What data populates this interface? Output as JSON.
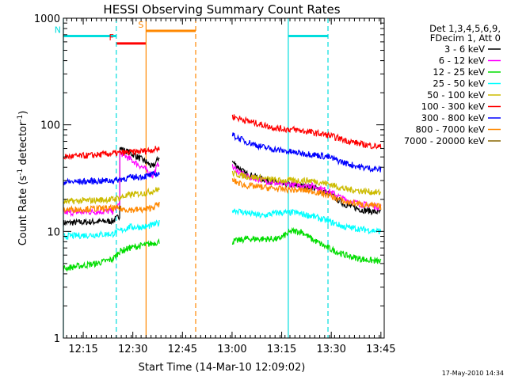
{
  "chart_data": {
    "type": "line",
    "title": "HESSI Observing Summary Count Rates",
    "xlabel": "Start Time (14-Mar-10 12:09:02)",
    "ylabel_main": "Count Rate (s",
    "ylabel_sup": "-1",
    "ylabel_mid": " detector",
    "ylabel_sup2": "-1",
    "ylabel_end": ")",
    "y_scale": "log",
    "ylim": [
      1,
      1000
    ],
    "xlim_minutes": [
      0,
      97
    ],
    "x_ticks": [
      {
        "m": 6,
        "label": "12:15"
      },
      {
        "m": 21,
        "label": "12:30"
      },
      {
        "m": 36,
        "label": "12:45"
      },
      {
        "m": 51,
        "label": "13:00"
      },
      {
        "m": 66,
        "label": "13:15"
      },
      {
        "m": 81,
        "label": "13:30"
      },
      {
        "m": 96,
        "label": "13:45"
      }
    ],
    "y_ticks": [
      {
        "v": 1,
        "label": "1"
      },
      {
        "v": 10,
        "label": "10"
      },
      {
        "v": 100,
        "label": "100"
      },
      {
        "v": 1000,
        "label": "1000"
      }
    ],
    "legend_header": [
      "Det 1,3,4,5,6,9,",
      "FDecim 1, Att 0"
    ],
    "legend_placement": "right",
    "series": [
      {
        "name": "3 - 6 keV",
        "color": "#000000",
        "points": [
          [
            0,
            12
          ],
          [
            15,
            12.5
          ],
          [
            17,
            14
          ],
          [
            17.1,
            60
          ],
          [
            20,
            55
          ],
          [
            25,
            45
          ],
          [
            27,
            40
          ],
          [
            29,
            50
          ],
          [
            29.1,
            0
          ],
          [
            51,
            0
          ],
          [
            51.1,
            45
          ],
          [
            55,
            35
          ],
          [
            65,
            28
          ],
          [
            75,
            26
          ],
          [
            80,
            23
          ],
          [
            85,
            18
          ],
          [
            90,
            16
          ],
          [
            96,
            15
          ]
        ]
      },
      {
        "name": "6 - 12 keV",
        "color": "#ff00ff",
        "points": [
          [
            0,
            15
          ],
          [
            15,
            15.5
          ],
          [
            17,
            18
          ],
          [
            17.1,
            55
          ],
          [
            20,
            48
          ],
          [
            25,
            38
          ],
          [
            27,
            33
          ],
          [
            29,
            45
          ],
          [
            29.1,
            0
          ],
          [
            51,
            0
          ],
          [
            51.1,
            40
          ],
          [
            55,
            33
          ],
          [
            65,
            28
          ],
          [
            75,
            27
          ],
          [
            80,
            24
          ],
          [
            85,
            20
          ],
          [
            90,
            18
          ],
          [
            96,
            17
          ]
        ]
      },
      {
        "name": "12 - 25 keV",
        "color": "#00dd00",
        "points": [
          [
            0,
            4.5
          ],
          [
            10,
            5
          ],
          [
            15,
            5.5
          ],
          [
            17,
            6.5
          ],
          [
            20,
            7
          ],
          [
            25,
            7.5
          ],
          [
            29,
            8
          ],
          [
            29.1,
            0
          ],
          [
            51,
            0
          ],
          [
            51.1,
            8
          ],
          [
            55,
            8.5
          ],
          [
            60,
            8.5
          ],
          [
            65,
            8.5
          ],
          [
            69,
            10
          ],
          [
            72,
            10
          ],
          [
            75,
            8.5
          ],
          [
            80,
            7
          ],
          [
            85,
            6
          ],
          [
            90,
            5.5
          ],
          [
            96,
            5.2
          ]
        ]
      },
      {
        "name": "25 - 50 keV",
        "color": "#00ffff",
        "points": [
          [
            0,
            9
          ],
          [
            15,
            9.5
          ],
          [
            20,
            11
          ],
          [
            25,
            11
          ],
          [
            29,
            12
          ],
          [
            29.1,
            0
          ],
          [
            51,
            0
          ],
          [
            51.1,
            16
          ],
          [
            55,
            15
          ],
          [
            60,
            14
          ],
          [
            65,
            15
          ],
          [
            70,
            15
          ],
          [
            75,
            14
          ],
          [
            80,
            12.5
          ],
          [
            85,
            11
          ],
          [
            90,
            10.5
          ],
          [
            96,
            10
          ]
        ]
      },
      {
        "name": "50 - 100 keV",
        "color": "#ccbb00",
        "points": [
          [
            0,
            19
          ],
          [
            15,
            20
          ],
          [
            20,
            22
          ],
          [
            25,
            23
          ],
          [
            29,
            25
          ],
          [
            29.1,
            0
          ],
          [
            51,
            0
          ],
          [
            51.1,
            35
          ],
          [
            55,
            33
          ],
          [
            65,
            30
          ],
          [
            75,
            30
          ],
          [
            80,
            28
          ],
          [
            85,
            25
          ],
          [
            90,
            24
          ],
          [
            96,
            23
          ]
        ]
      },
      {
        "name": "100 - 300 keV",
        "color": "#ff0000",
        "points": [
          [
            0,
            50
          ],
          [
            10,
            52
          ],
          [
            15,
            54
          ],
          [
            20,
            55
          ],
          [
            25,
            57
          ],
          [
            29,
            60
          ],
          [
            29.1,
            0
          ],
          [
            51,
            0
          ],
          [
            51.1,
            120
          ],
          [
            55,
            110
          ],
          [
            60,
            100
          ],
          [
            65,
            92
          ],
          [
            70,
            90
          ],
          [
            75,
            85
          ],
          [
            80,
            80
          ],
          [
            85,
            72
          ],
          [
            90,
            66
          ],
          [
            96,
            62
          ]
        ]
      },
      {
        "name": "300 - 800 keV",
        "color": "#0000ff",
        "points": [
          [
            0,
            29
          ],
          [
            15,
            30
          ],
          [
            20,
            32
          ],
          [
            25,
            33
          ],
          [
            29,
            35
          ],
          [
            29.1,
            0
          ],
          [
            51,
            0
          ],
          [
            51.1,
            80
          ],
          [
            55,
            70
          ],
          [
            60,
            62
          ],
          [
            65,
            58
          ],
          [
            70,
            55
          ],
          [
            75,
            53
          ],
          [
            80,
            50
          ],
          [
            85,
            44
          ],
          [
            90,
            40
          ],
          [
            96,
            38
          ]
        ]
      },
      {
        "name": "800 - 7000 keV",
        "color": "#ff8800",
        "points": [
          [
            0,
            16
          ],
          [
            15,
            16.5
          ],
          [
            20,
            16
          ],
          [
            25,
            16
          ],
          [
            29,
            18
          ],
          [
            29.1,
            0
          ],
          [
            51,
            0
          ],
          [
            51.1,
            30
          ],
          [
            55,
            27
          ],
          [
            65,
            25
          ],
          [
            75,
            24
          ],
          [
            80,
            22
          ],
          [
            85,
            19
          ],
          [
            90,
            18
          ],
          [
            96,
            17
          ]
        ]
      },
      {
        "name": "7000 - 20000 keV",
        "color": "#886600",
        "points": []
      }
    ],
    "flag_bars": [
      {
        "label": "N",
        "color": "#00dddd",
        "start": 0,
        "end": 16,
        "level": 680
      },
      {
        "label": "F",
        "color": "#ff0000",
        "start": 16,
        "end": 25,
        "level": 580
      },
      {
        "label": "S",
        "color": "#ff8800",
        "start": 25,
        "end": 40,
        "level": 760
      },
      {
        "label": "",
        "color": "#00dddd",
        "start": 68,
        "end": 80,
        "level": 680
      }
    ],
    "vertical_lines": [
      {
        "m": 0,
        "color": "#00dddd",
        "style": "solid"
      },
      {
        "m": 16,
        "color": "#00dddd",
        "style": "dashed"
      },
      {
        "m": 25,
        "color": "#ff8800",
        "style": "solid"
      },
      {
        "m": 40,
        "color": "#ff8800",
        "style": "dashed"
      },
      {
        "m": 68,
        "color": "#00dddd",
        "style": "solid"
      },
      {
        "m": 80,
        "color": "#00dddd",
        "style": "dashed"
      }
    ]
  },
  "footer": {
    "date_stamp": "17-May-2010 14:34"
  }
}
